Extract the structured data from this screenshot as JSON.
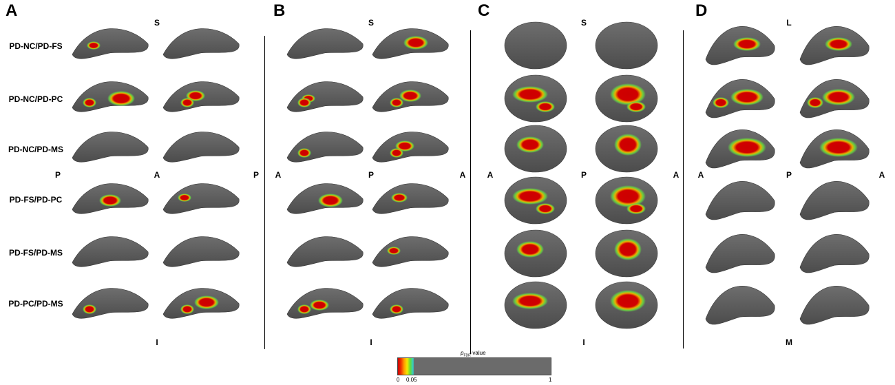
{
  "panels": [
    "A",
    "B",
    "C",
    "D"
  ],
  "comparisons": [
    "PD-NC/PD-FS",
    "PD-NC/PD-PC",
    "PD-NC/PD-MS",
    "PD-FS/PD-PC",
    "PD-FS/PD-MS",
    "PD-PC/PD-MS"
  ],
  "orientation": {
    "A": {
      "top": "S",
      "left": "P",
      "right": "A",
      "bottom": "I",
      "far_right": "P"
    },
    "B": {
      "left": "A",
      "top": "S",
      "mid": "P",
      "right": "A",
      "bottom": "I"
    },
    "C": {
      "left": "A",
      "top": "S",
      "mid": "P",
      "right": "A",
      "bottom": "I"
    },
    "D": {
      "left": "A",
      "top": "L",
      "mid": "P",
      "right": "A",
      "bottom": "M"
    }
  },
  "colorbar": {
    "title_italic": "p",
    "title_sub": "FDR",
    "title_suffix": "-value",
    "ticks": [
      "0",
      "0.05",
      "1"
    ],
    "colors": {
      "significant_low": "#cc0000",
      "mid": "#ff9900",
      "yellow": "#f5e600",
      "green": "#66dd33",
      "cyan": "#33cccc",
      "nonsignificant": "#6b6b6b"
    }
  },
  "colors": {
    "surface": "#5a5a5a",
    "surface_edge": "#3f3f3f",
    "blob_core": "#cc0000",
    "blob_ring": "#e8d000",
    "blob_outer": "#55cc44"
  }
}
